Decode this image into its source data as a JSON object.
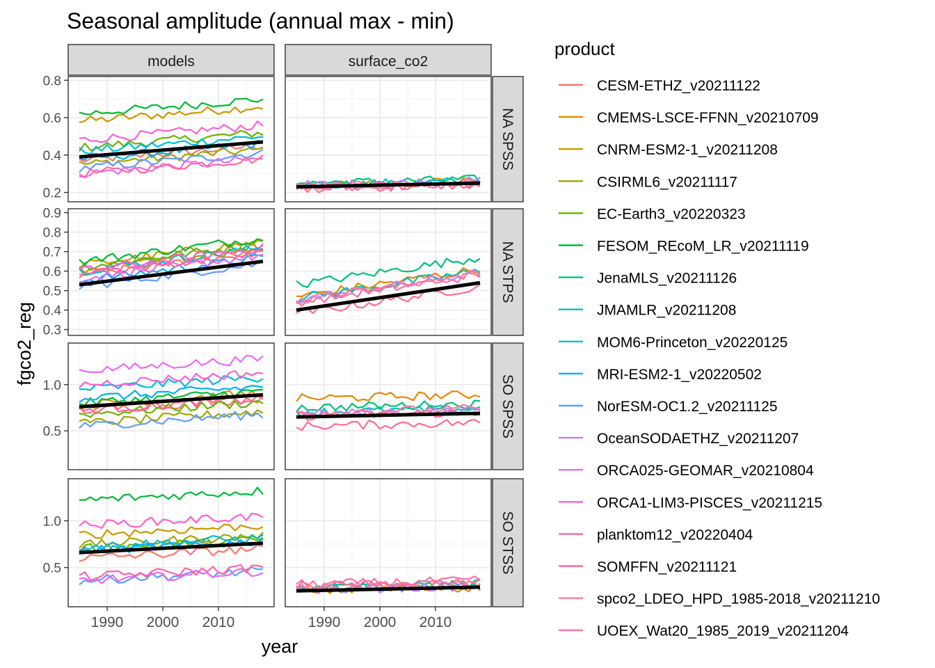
{
  "title": "Seasonal amplitude (annual max - min)",
  "xlabel": "year",
  "ylabel": "fgco2_reg",
  "legend": {
    "title": "product",
    "placement": "right",
    "items": [
      {
        "name": "CESM-ETHZ_v20211122",
        "color": "#F8766D"
      },
      {
        "name": "CMEMS-LSCE-FFNN_v20210709",
        "color": "#E58700"
      },
      {
        "name": "CNRM-ESM2-1_v20211208",
        "color": "#C99800"
      },
      {
        "name": "CSIRML6_v20211117",
        "color": "#A3A500"
      },
      {
        "name": "EC-Earth3_v20220323",
        "color": "#6BB100"
      },
      {
        "name": "FESOM_REcoM_LR_v20211119",
        "color": "#00BA38"
      },
      {
        "name": "JenaMLS_v20211126",
        "color": "#00BF7D"
      },
      {
        "name": "JMAMLR_v20211208",
        "color": "#00C0AF"
      },
      {
        "name": "MOM6-Princeton_v20220125",
        "color": "#00BCD8"
      },
      {
        "name": "MRI-ESM2-1_v20220502",
        "color": "#00B0F6"
      },
      {
        "name": "NorESM-OC1.2_v20211125",
        "color": "#619CFF"
      },
      {
        "name": "OceanSODAETHZ_v20211207",
        "color": "#B983FF"
      },
      {
        "name": "ORCA025-GEOMAR_v20210804",
        "color": "#E76BF3"
      },
      {
        "name": "ORCA1-LIM3-PISCES_v20211215",
        "color": "#FD61D1"
      },
      {
        "name": "planktom12_v20220404",
        "color": "#FF67A4"
      },
      {
        "name": "SOMFFN_v20211121",
        "color": "#FF6C91"
      },
      {
        "name": "spco2_LDEO_HPD_1985-2018_v20211210",
        "color": "#F87D97"
      },
      {
        "name": "UOEX_Wat20_1985_2019_v20211204",
        "color": "#FF6FA8"
      }
    ]
  },
  "chart_data": {
    "type": "line",
    "title": "Seasonal amplitude (annual max - min)",
    "xlabel": "year",
    "ylabel": "fgco2_reg",
    "facet_columns": [
      "models",
      "surface_co2"
    ],
    "facet_rows": [
      "NA SPSS",
      "NA STPS",
      "SO SPSS",
      "SO STSS"
    ],
    "x_range": [
      1983,
      2020
    ],
    "x_ticks": [
      1990,
      2000,
      2010
    ],
    "grid": true,
    "trend_line_color": "#000000",
    "panels": [
      {
        "row": "NA SPSS",
        "column": "models",
        "ylim": [
          0.15,
          0.82
        ],
        "y_ticks": [
          0.2,
          0.4,
          0.6,
          0.8
        ],
        "y_tick_labels": [
          "0.2",
          "0.4",
          "0.6",
          "0.8"
        ],
        "trend": {
          "x": [
            1985,
            2018
          ],
          "y": [
            0.39,
            0.47
          ]
        }
      },
      {
        "row": "NA SPSS",
        "column": "surface_co2",
        "ylim": [
          0.15,
          0.82
        ],
        "y_ticks": [
          0.2,
          0.4,
          0.6,
          0.8
        ],
        "y_tick_labels": [
          "0.2",
          "0.4",
          "0.6",
          "0.8"
        ],
        "trend": {
          "x": [
            1985,
            2018
          ],
          "y": [
            0.23,
            0.25
          ]
        }
      },
      {
        "row": "NA STPS",
        "column": "models",
        "ylim": [
          0.27,
          0.92
        ],
        "y_ticks": [
          0.3,
          0.4,
          0.5,
          0.6,
          0.7,
          0.8,
          0.9
        ],
        "y_tick_labels": [
          "0.3",
          "0.4",
          "0.5",
          "0.6",
          "0.7",
          "0.8",
          "0.9"
        ],
        "trend": {
          "x": [
            1985,
            2018
          ],
          "y": [
            0.53,
            0.65
          ]
        }
      },
      {
        "row": "NA STPS",
        "column": "surface_co2",
        "ylim": [
          0.27,
          0.92
        ],
        "y_ticks": [
          0.3,
          0.4,
          0.5,
          0.6,
          0.7,
          0.8,
          0.9
        ],
        "y_tick_labels": [
          "0.3",
          "0.4",
          "0.5",
          "0.6",
          "0.7",
          "0.8",
          "0.9"
        ],
        "trend": {
          "x": [
            1985,
            2018
          ],
          "y": [
            0.4,
            0.54
          ]
        }
      },
      {
        "row": "SO SPSS",
        "column": "models",
        "ylim": [
          0.08,
          1.45
        ],
        "y_ticks": [
          0.5,
          1.0
        ],
        "y_tick_labels": [
          "0.5",
          "1.0"
        ],
        "trend": {
          "x": [
            1985,
            2018
          ],
          "y": [
            0.76,
            0.89
          ]
        }
      },
      {
        "row": "SO SPSS",
        "column": "surface_co2",
        "ylim": [
          0.08,
          1.45
        ],
        "y_ticks": [
          0.5,
          1.0
        ],
        "y_tick_labels": [
          "0.5",
          "1.0"
        ],
        "trend": {
          "x": [
            1985,
            2018
          ],
          "y": [
            0.65,
            0.69
          ]
        }
      },
      {
        "row": "SO STSS",
        "column": "models",
        "ylim": [
          0.08,
          1.45
        ],
        "y_ticks": [
          0.5,
          1.0
        ],
        "y_tick_labels": [
          "0.5",
          "1.0"
        ],
        "trend": {
          "x": [
            1985,
            2018
          ],
          "y": [
            0.66,
            0.76
          ]
        }
      },
      {
        "row": "SO STSS",
        "column": "surface_co2",
        "ylim": [
          0.08,
          1.45
        ],
        "y_ticks": [
          0.5,
          1.0
        ],
        "y_tick_labels": [
          "0.5",
          "1.0"
        ],
        "trend": {
          "x": [
            1985,
            2018
          ],
          "y": [
            0.25,
            0.29
          ]
        }
      }
    ],
    "series": [
      {
        "name": "CESM-ETHZ_v20211122",
        "column": "models",
        "base": {
          "NA SPSS": 0.37,
          "NA STPS": 0.58,
          "SO SPSS": 0.72,
          "SO STSS": 0.6
        }
      },
      {
        "name": "CMEMS-LSCE-FFNN_v20210709",
        "column": "surface_co2",
        "base": {
          "NA SPSS": 0.24,
          "NA STPS": 0.47,
          "SO SPSS": 0.85,
          "SO STSS": 0.25
        }
      },
      {
        "name": "CNRM-ESM2-1_v20211208",
        "column": "models",
        "base": {
          "NA SPSS": 0.58,
          "NA STPS": 0.63,
          "SO SPSS": 0.78,
          "SO STSS": 0.85
        }
      },
      {
        "name": "CSIRML6_v20211117",
        "column": "models",
        "base": {
          "NA SPSS": 0.35,
          "NA STPS": 0.6,
          "SO SPSS": 0.58,
          "SO STSS": 0.74
        }
      },
      {
        "name": "EC-Earth3_v20220323",
        "column": "models",
        "base": {
          "NA SPSS": 0.44,
          "NA STPS": 0.62,
          "SO SPSS": 0.68,
          "SO STSS": 0.7
        }
      },
      {
        "name": "FESOM_REcoM_LR_v20211119",
        "column": "models",
        "base": {
          "NA SPSS": 0.62,
          "NA STPS": 0.65,
          "SO SPSS": 0.8,
          "SO STSS": 1.22
        }
      },
      {
        "name": "JenaMLS_v20211126",
        "column": "surface_co2",
        "base": {
          "NA SPSS": 0.25,
          "NA STPS": 0.53,
          "SO SPSS": 0.75,
          "SO STSS": 0.28
        }
      },
      {
        "name": "JMAMLR_v20211208",
        "column": "surface_co2",
        "base": {
          "NA SPSS": 0.24,
          "NA STPS": 0.46,
          "SO SPSS": 0.7,
          "SO STSS": 0.27
        }
      },
      {
        "name": "MOM6-Princeton_v20220125",
        "column": "models",
        "base": {
          "NA SPSS": 0.42,
          "NA STPS": 0.6,
          "SO SPSS": 0.95,
          "SO STSS": 0.72
        }
      },
      {
        "name": "MRI-ESM2-1_v20220502",
        "column": "models",
        "base": {
          "NA SPSS": 0.38,
          "NA STPS": 0.55,
          "SO SPSS": 0.85,
          "SO STSS": 0.68
        }
      },
      {
        "name": "NorESM-OC1.2_v20211125",
        "column": "models",
        "base": {
          "NA SPSS": 0.33,
          "NA STPS": 0.52,
          "SO SPSS": 0.55,
          "SO STSS": 0.36
        }
      },
      {
        "name": "OceanSODAETHZ_v20211207",
        "column": "surface_co2",
        "base": {
          "NA SPSS": 0.24,
          "NA STPS": 0.45,
          "SO SPSS": 0.68,
          "SO STSS": 0.26
        }
      },
      {
        "name": "ORCA025-GEOMAR_v20210804",
        "column": "models",
        "base": {
          "NA SPSS": 0.3,
          "NA STPS": 0.56,
          "SO SPSS": 1.15,
          "SO STSS": 0.36
        }
      },
      {
        "name": "ORCA1-LIM3-PISCES_v20211215",
        "column": "models",
        "base": {
          "NA SPSS": 0.48,
          "NA STPS": 0.6,
          "SO SPSS": 1.0,
          "SO STSS": 0.95
        }
      },
      {
        "name": "planktom12_v20220404",
        "column": "models",
        "base": {
          "NA SPSS": 0.3,
          "NA STPS": 0.58,
          "SO SPSS": 0.72,
          "SO STSS": 0.4
        }
      },
      {
        "name": "SOMFFN_v20211121",
        "column": "surface_co2",
        "base": {
          "NA SPSS": 0.22,
          "NA STPS": 0.38,
          "SO SPSS": 0.55,
          "SO STSS": 0.3
        }
      },
      {
        "name": "spco2_LDEO_HPD_1985-2018_v20211210",
        "column": "surface_co2",
        "base": {
          "NA SPSS": 0.23,
          "NA STPS": 0.45,
          "SO SPSS": 0.7,
          "SO STSS": 0.28
        }
      },
      {
        "name": "UOEX_Wat20_1985_2019_v20211204",
        "column": "surface_co2",
        "base": {
          "NA SPSS": 0.22,
          "NA STPS": 0.44,
          "SO SPSS": 0.66,
          "SO STSS": 0.32
        }
      }
    ]
  }
}
